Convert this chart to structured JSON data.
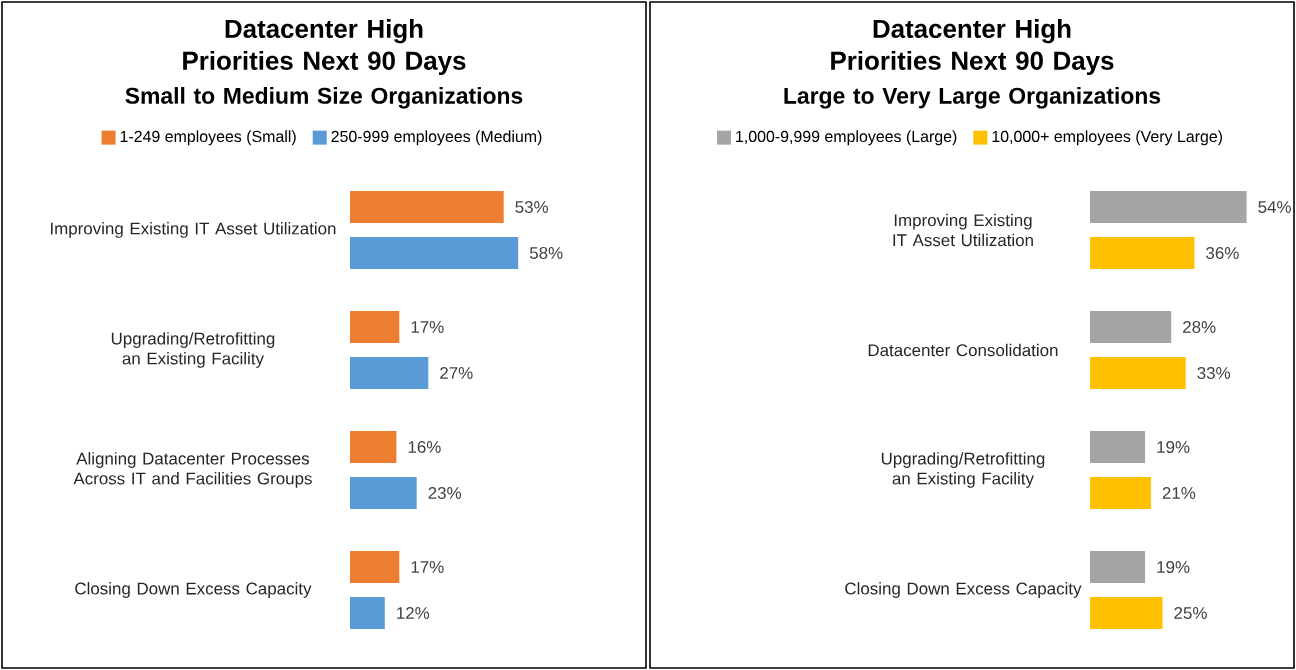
{
  "chart_data": [
    {
      "type": "bar",
      "orientation": "horizontal",
      "title": "Datacenter High Priorities Next 90 Days",
      "subtitle": "Small to Medium Size Organizations",
      "legend": "top",
      "categories": [
        "Improving Existing IT Asset Utilization",
        "Upgrading/Retrofitting an Existing Facility",
        "Aligning Datacenter Processes Across IT and Facilities Groups",
        "Closing Down Excess Capacity"
      ],
      "series": [
        {
          "name": "1-249 employees (Small)",
          "color": "#ed7d31",
          "values": [
            53,
            17,
            16,
            17
          ],
          "value_labels": [
            "53%",
            "17%",
            "16%",
            "17%"
          ]
        },
        {
          "name": "250-999 employees (Medium)",
          "color": "#5b9bd5",
          "values": [
            58,
            27,
            23,
            12
          ],
          "value_labels": [
            "58%",
            "27%",
            "23%",
            "12%"
          ]
        }
      ]
    },
    {
      "type": "bar",
      "orientation": "horizontal",
      "title": "Datacenter High Priorities Next 90 Days",
      "subtitle": "Large to Very Large Organizations",
      "legend": "top",
      "categories": [
        "Improving Existing IT Asset Utilization",
        "Datacenter Consolidation",
        "Upgrading/Retrofitting an Existing Facility",
        "Closing Down Excess Capacity"
      ],
      "series": [
        {
          "name": "1,000-9,999 employees (Large)",
          "color": "#a5a5a5",
          "values": [
            54,
            28,
            19,
            19
          ],
          "value_labels": [
            "54%",
            "28%",
            "19%",
            "19%"
          ]
        },
        {
          "name": "10,000+ employees (Very Large)",
          "color": "#ffc000",
          "values": [
            36,
            33,
            21,
            25
          ],
          "value_labels": [
            "36%",
            "33%",
            "21%",
            "25%"
          ]
        }
      ]
    }
  ]
}
